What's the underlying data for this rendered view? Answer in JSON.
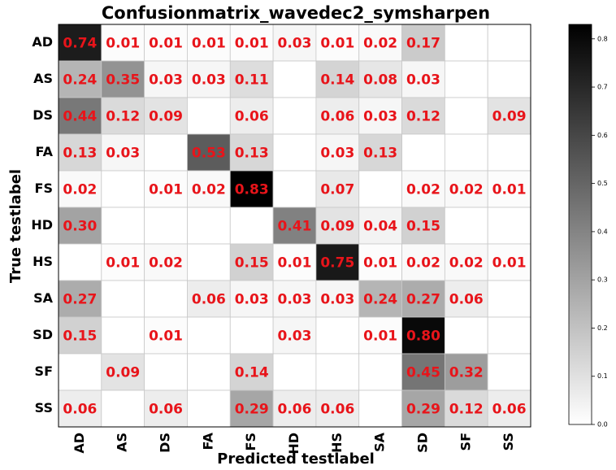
{
  "chart_data": {
    "type": "heatmap",
    "title": "Confusionmatrix_wavedec2_symsharpen",
    "xlabel": "Predicted testlabel",
    "ylabel": "True testlabel",
    "x_categories": [
      "AD",
      "AS",
      "DS",
      "FA",
      "FS",
      "HD",
      "HS",
      "SA",
      "SD",
      "SF",
      "SS"
    ],
    "y_categories": [
      "AD",
      "AS",
      "DS",
      "FA",
      "FS",
      "HD",
      "HS",
      "SA",
      "SD",
      "SF",
      "SS"
    ],
    "values": [
      [
        0.74,
        0.01,
        0.01,
        0.01,
        0.01,
        0.03,
        0.01,
        0.02,
        0.17,
        null,
        null
      ],
      [
        0.24,
        0.35,
        0.03,
        0.03,
        0.11,
        null,
        0.14,
        0.08,
        0.03,
        null,
        null
      ],
      [
        0.44,
        0.12,
        0.09,
        null,
        0.06,
        null,
        0.06,
        0.03,
        0.12,
        null,
        0.09
      ],
      [
        0.13,
        0.03,
        null,
        0.53,
        0.13,
        null,
        0.03,
        0.13,
        null,
        null,
        null
      ],
      [
        0.02,
        null,
        0.01,
        0.02,
        0.83,
        null,
        0.07,
        null,
        0.02,
        0.02,
        0.01
      ],
      [
        0.3,
        null,
        null,
        null,
        null,
        0.41,
        0.09,
        0.04,
        0.15,
        null,
        null
      ],
      [
        null,
        0.01,
        0.02,
        null,
        0.15,
        0.01,
        0.75,
        0.01,
        0.02,
        0.02,
        0.01
      ],
      [
        0.27,
        null,
        null,
        0.06,
        0.03,
        0.03,
        0.03,
        0.24,
        0.27,
        0.06,
        null
      ],
      [
        0.15,
        null,
        0.01,
        null,
        null,
        0.03,
        null,
        0.01,
        0.8,
        null,
        null
      ],
      [
        null,
        0.09,
        null,
        null,
        0.14,
        null,
        null,
        null,
        0.45,
        0.32,
        null
      ],
      [
        0.06,
        null,
        0.06,
        null,
        0.29,
        0.06,
        0.06,
        null,
        0.29,
        0.12,
        0.06
      ]
    ],
    "value_labels": [
      [
        "0.74",
        "0.01",
        "0.01",
        "0.01",
        "0.01",
        "0.03",
        "0.01",
        "0.02",
        "0.17",
        null,
        null
      ],
      [
        "0.24",
        "0.35",
        "0.03",
        "0.03",
        "0.11",
        null,
        "0.14",
        "0.08",
        "0.03",
        null,
        null
      ],
      [
        "0.44",
        "0.12",
        "0.09",
        null,
        "0.06",
        null,
        "0.06",
        "0.03",
        "0.12",
        null,
        "0.09"
      ],
      [
        "0.13",
        "0.03",
        null,
        "0.53",
        "0.13",
        null,
        "0.03",
        "0.13",
        null,
        null,
        null
      ],
      [
        "0.02",
        null,
        "0.01",
        "0.02",
        "0.83",
        null,
        "0.07",
        null,
        "0.02",
        "0.02",
        "0.01"
      ],
      [
        "0.30",
        null,
        null,
        null,
        null,
        "0.41",
        "0.09",
        "0.04",
        "0.15",
        null,
        null
      ],
      [
        null,
        "0.01",
        "0.02",
        null,
        "0.15",
        "0.01",
        "0.75",
        "0.01",
        "0.02",
        "0.02",
        "0.01"
      ],
      [
        "0.27",
        null,
        null,
        "0.06",
        "0.03",
        "0.03",
        "0.03",
        "0.24",
        "0.27",
        "0.06",
        null
      ],
      [
        "0.15",
        null,
        "0.01",
        null,
        null,
        "0.03",
        null,
        "0.01",
        "0.80",
        null,
        null
      ],
      [
        null,
        "0.09",
        null,
        null,
        "0.14",
        null,
        null,
        null,
        "0.45",
        "0.32",
        null
      ],
      [
        "0.06",
        null,
        "0.06",
        null,
        "0.29",
        "0.06",
        "0.06",
        null,
        "0.29",
        "0.12",
        "0.06"
      ]
    ],
    "zlim": [
      0,
      0.83
    ],
    "zticks": [
      {
        "value": 0,
        "label": "0.0"
      },
      0.1,
      0.2,
      0.3,
      0.4,
      0.5,
      0.6,
      0.7,
      0.8
    ],
    "cmap_colors": [
      "#ffffff",
      "#000000"
    ],
    "label_color": "#e8141a"
  }
}
